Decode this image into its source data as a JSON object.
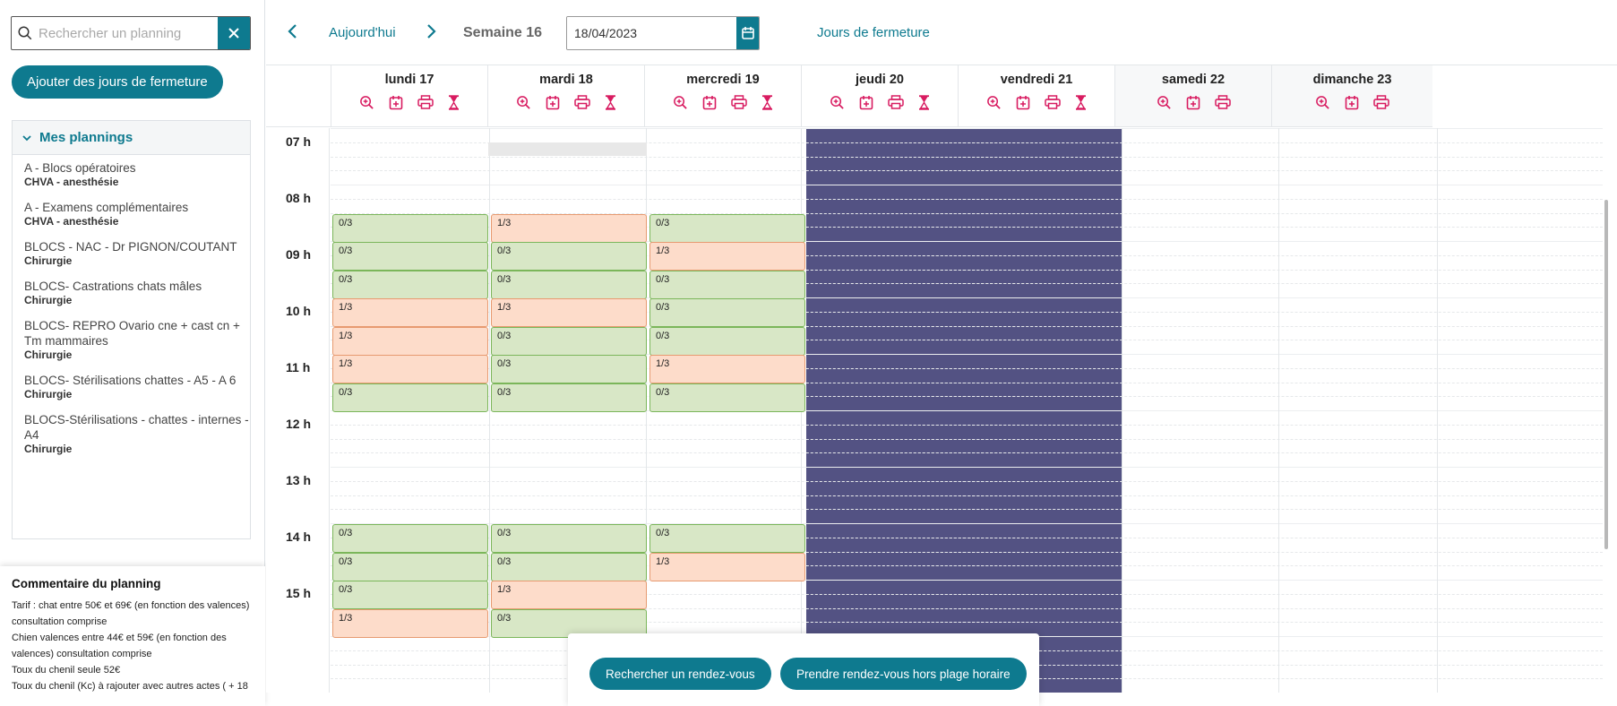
{
  "sidebar": {
    "search_placeholder": "Rechercher un planning",
    "add_closure_label": "Ajouter des jours de fermeture",
    "plannings_title": "Mes plannings",
    "plannings": [
      {
        "name": "A - Blocs opératoires",
        "category": "CHVA - anesthésie"
      },
      {
        "name": "A - Examens complémentaires",
        "category": "CHVA - anesthésie"
      },
      {
        "name": "BLOCS - NAC - Dr PIGNON/COUTANT",
        "category": "Chirurgie"
      },
      {
        "name": "BLOCS- Castrations chats mâles",
        "category": "Chirurgie"
      },
      {
        "name": "BLOCS- REPRO Ovario cne + cast cn + Tm mammaires",
        "category": "Chirurgie"
      },
      {
        "name": "BLOCS- Stérilisations chattes - A5 - A 6",
        "category": "Chirurgie"
      },
      {
        "name": "BLOCS-Stérilisations - chattes - internes - A4",
        "category": "Chirurgie"
      }
    ],
    "comment": {
      "title": "Commentaire du planning",
      "lines": [
        "Tarif : chat entre 50€ et 69€ (en fonction des valences)",
        "consultation comprise",
        "Chien valences entre 44€ et 59€ (en fonction des",
        "valences) consultation comprise",
        "Toux du chenil seule 52€",
        "Toux du chenil (Kc) à rajouter avec autres actes ( + 18"
      ]
    }
  },
  "topbar": {
    "today_label": "Aujourd'hui",
    "week_label": "Semaine 16",
    "date_value": "18/04/2023",
    "closure_link": "Jours de fermeture"
  },
  "days": [
    {
      "name": "lundi 17",
      "icons": [
        "zoom-in-icon",
        "calendar-plus-icon",
        "printer-icon",
        "hourglass-icon"
      ],
      "closed": false,
      "weekend": false
    },
    {
      "name": "mardi 18",
      "icons": [
        "zoom-in-icon",
        "calendar-plus-icon",
        "printer-icon",
        "hourglass-icon"
      ],
      "closed": false,
      "weekend": false
    },
    {
      "name": "mercredi 19",
      "icons": [
        "zoom-in-icon",
        "calendar-plus-icon",
        "printer-icon",
        "hourglass-icon"
      ],
      "closed": false,
      "weekend": false
    },
    {
      "name": "jeudi 20",
      "icons": [
        "zoom-in-icon",
        "calendar-plus-icon",
        "printer-icon",
        "hourglass-icon"
      ],
      "closed": true,
      "weekend": false
    },
    {
      "name": "vendredi 21",
      "icons": [
        "zoom-in-icon",
        "calendar-plus-icon",
        "printer-icon",
        "hourglass-icon"
      ],
      "closed": true,
      "weekend": false
    },
    {
      "name": "samedi 22",
      "icons": [
        "zoom-in-icon",
        "calendar-plus-icon",
        "printer-icon"
      ],
      "closed": false,
      "weekend": true
    },
    {
      "name": "dimanche 23",
      "icons": [
        "zoom-in-icon",
        "calendar-plus-icon",
        "printer-icon"
      ],
      "closed": false,
      "weekend": true
    }
  ],
  "hours": [
    "07 h",
    "08 h",
    "09 h",
    "10 h",
    "11 h",
    "12 h",
    "13 h",
    "14 h",
    "15 h"
  ],
  "slots": {
    "lundi 17": [
      {
        "start": "08:30",
        "label": "0/3"
      },
      {
        "start": "09:00",
        "label": "0/3"
      },
      {
        "start": "09:30",
        "label": "0/3"
      },
      {
        "start": "10:00",
        "label": "1/3"
      },
      {
        "start": "10:30",
        "label": "1/3"
      },
      {
        "start": "11:00",
        "label": "1/3"
      },
      {
        "start": "11:30",
        "label": "0/3"
      },
      {
        "start": "14:00",
        "label": "0/3"
      },
      {
        "start": "14:30",
        "label": "0/3"
      },
      {
        "start": "15:00",
        "label": "0/3"
      },
      {
        "start": "15:30",
        "label": "1/3"
      }
    ],
    "mardi 18": [
      {
        "start": "08:30",
        "label": "1/3"
      },
      {
        "start": "09:00",
        "label": "0/3"
      },
      {
        "start": "09:30",
        "label": "0/3"
      },
      {
        "start": "10:00",
        "label": "1/3"
      },
      {
        "start": "10:30",
        "label": "0/3"
      },
      {
        "start": "11:00",
        "label": "0/3"
      },
      {
        "start": "11:30",
        "label": "0/3"
      },
      {
        "start": "14:00",
        "label": "0/3"
      },
      {
        "start": "14:30",
        "label": "0/3"
      },
      {
        "start": "15:00",
        "label": "1/3"
      },
      {
        "start": "15:30",
        "label": "0/3"
      }
    ],
    "mercredi 19": [
      {
        "start": "08:30",
        "label": "0/3"
      },
      {
        "start": "09:00",
        "label": "1/3"
      },
      {
        "start": "09:30",
        "label": "0/3"
      },
      {
        "start": "10:00",
        "label": "0/3"
      },
      {
        "start": "10:30",
        "label": "0/3"
      },
      {
        "start": "11:00",
        "label": "1/3"
      },
      {
        "start": "11:30",
        "label": "0/3"
      },
      {
        "start": "14:00",
        "label": "0/3"
      },
      {
        "start": "14:30",
        "label": "1/3"
      }
    ]
  },
  "actions": {
    "search_appointment": "Rechercher un rendez-vous",
    "book_outside": "Prendre rendez-vous hors plage horaire"
  },
  "colors": {
    "accent": "#0e7a8f",
    "icon_pink": "#d81b60",
    "closed_day": "#535283",
    "slot_free_bg": "#d8e7c6",
    "slot_busy_bg": "#fddcca"
  }
}
